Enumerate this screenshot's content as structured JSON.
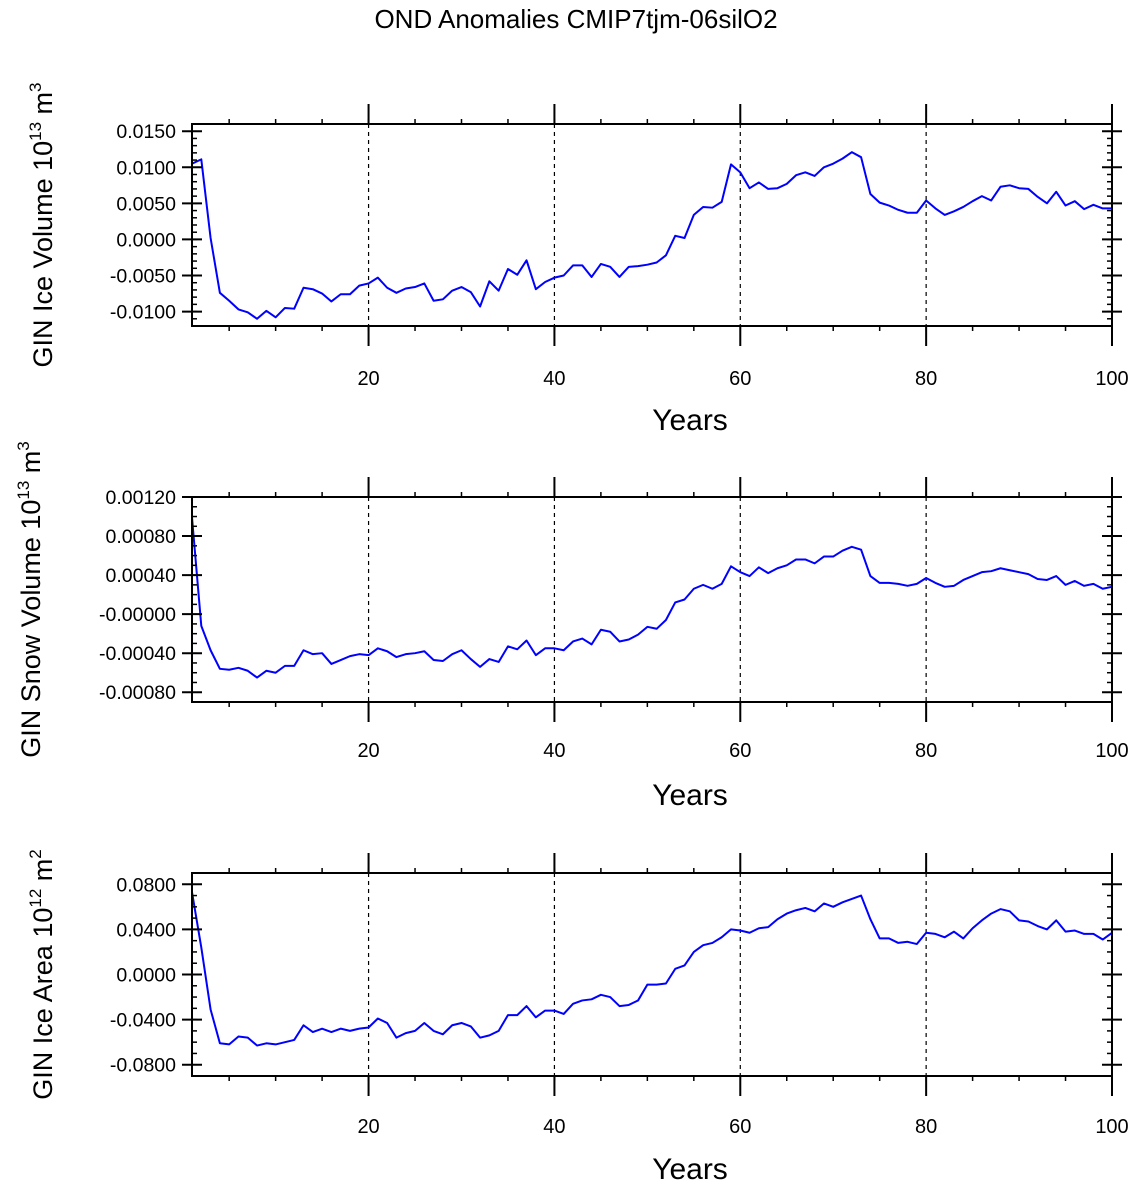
{
  "title": "OND Anomalies CMIP7tjm-06silO2",
  "colors": {
    "series": "#0000ff",
    "axis": "#000000",
    "refline": "#000000"
  },
  "chart_data": [
    {
      "type": "line",
      "ylabel": {
        "main": "GIN Ice Volume 10",
        "sup": "13",
        "unit": " m",
        "usup": "3"
      },
      "xlabel": "Years",
      "xlim": [
        1,
        100
      ],
      "ylim": [
        -0.012,
        0.016
      ],
      "x_ticks": [
        "20",
        "40",
        "60",
        "80",
        "100"
      ],
      "x_tick_values": [
        20,
        40,
        60,
        80,
        100
      ],
      "y_ticks": [
        "0.0150",
        "0.0100",
        "0.0050",
        "0.0000",
        "-0.0050",
        "-0.0100"
      ],
      "y_tick_values": [
        0.015,
        0.01,
        0.005,
        0.0,
        -0.005,
        -0.01
      ],
      "y_minor_step": 0.001,
      "x_minor_step": 5,
      "reference_lines_x": [
        20,
        40,
        60,
        80
      ],
      "reference_line_style": "dashed",
      "series": [
        {
          "x_start": 1,
          "x_step": 1,
          "values": [
            0.0105,
            0.0111,
            0.0002,
            -0.0074,
            -0.0085,
            -0.0097,
            -0.0101,
            -0.011,
            -0.0099,
            -0.0108,
            -0.0095,
            -0.0096,
            -0.0067,
            -0.0069,
            -0.0075,
            -0.0086,
            -0.0076,
            -0.0076,
            -0.0064,
            -0.0061,
            -0.0053,
            -0.0067,
            -0.0074,
            -0.0068,
            -0.0066,
            -0.0061,
            -0.0085,
            -0.0083,
            -0.0071,
            -0.0066,
            -0.0073,
            -0.0093,
            -0.0058,
            -0.0071,
            -0.0041,
            -0.0049,
            -0.0029,
            -0.0069,
            -0.0059,
            -0.0053,
            -0.005,
            -0.0036,
            -0.0036,
            -0.0052,
            -0.0034,
            -0.0038,
            -0.0052,
            -0.0038,
            -0.0037,
            -0.0035,
            -0.0032,
            -0.0022,
            0.0005,
            0.0002,
            0.0034,
            0.0045,
            0.0044,
            0.0052,
            0.0104,
            0.0093,
            0.0071,
            0.0079,
            0.007,
            0.0071,
            0.0077,
            0.0089,
            0.0093,
            0.0088,
            0.01,
            0.0105,
            0.0112,
            0.0121,
            0.0114,
            0.0063,
            0.0051,
            0.0047,
            0.0041,
            0.0037,
            0.0037,
            0.0054,
            0.0043,
            0.0034,
            0.0039,
            0.0045,
            0.0053,
            0.006,
            0.0054,
            0.0073,
            0.0075,
            0.0071,
            0.007,
            0.0059,
            0.005,
            0.0066,
            0.0047,
            0.0053,
            0.0042,
            0.0048,
            0.0043,
            0.0043
          ]
        }
      ]
    },
    {
      "type": "line",
      "ylabel": {
        "main": "GIN Snow Volume 10",
        "sup": "13",
        "unit": " m",
        "usup": "3"
      },
      "xlabel": "Years",
      "xlim": [
        1,
        100
      ],
      "ylim": [
        -0.0009,
        0.0012
      ],
      "x_ticks": [
        "20",
        "40",
        "60",
        "80",
        "100"
      ],
      "x_tick_values": [
        20,
        40,
        60,
        80,
        100
      ],
      "y_ticks": [
        "0.00120",
        "0.00080",
        "0.00040",
        "-0.00000",
        "-0.00040",
        "-0.00080"
      ],
      "y_tick_values": [
        0.0012,
        0.0008,
        0.0004,
        0.0,
        -0.0004,
        -0.0008
      ],
      "y_minor_step": 0.0001,
      "x_minor_step": 5,
      "reference_lines_x": [
        20,
        40,
        60,
        80
      ],
      "reference_line_style": "dashed",
      "series": [
        {
          "x_start": 1,
          "x_step": 1,
          "values": [
            0.00099,
            -0.00012,
            -0.00037,
            -0.00056,
            -0.00057,
            -0.00055,
            -0.00058,
            -0.00065,
            -0.00058,
            -0.0006,
            -0.00053,
            -0.00053,
            -0.00037,
            -0.00041,
            -0.0004,
            -0.00051,
            -0.00047,
            -0.00043,
            -0.00041,
            -0.00042,
            -0.00035,
            -0.00038,
            -0.00044,
            -0.00041,
            -0.0004,
            -0.00038,
            -0.00047,
            -0.00048,
            -0.00041,
            -0.00037,
            -0.00046,
            -0.00054,
            -0.00046,
            -0.00049,
            -0.00033,
            -0.00036,
            -0.00027,
            -0.00042,
            -0.00035,
            -0.00035,
            -0.00037,
            -0.00028,
            -0.00025,
            -0.00031,
            -0.00016,
            -0.00018,
            -0.00028,
            -0.00026,
            -0.00021,
            -0.00013,
            -0.00015,
            -6e-05,
            0.00012,
            0.00015,
            0.00026,
            0.0003,
            0.00026,
            0.00031,
            0.00049,
            0.00043,
            0.00039,
            0.00048,
            0.00042,
            0.00047,
            0.0005,
            0.00056,
            0.00056,
            0.00052,
            0.00059,
            0.00059,
            0.00065,
            0.00069,
            0.00066,
            0.00039,
            0.00032,
            0.00032,
            0.00031,
            0.00029,
            0.00031,
            0.00037,
            0.00032,
            0.00028,
            0.00029,
            0.00035,
            0.00039,
            0.00043,
            0.00044,
            0.00047,
            0.00045,
            0.00043,
            0.00041,
            0.00036,
            0.00035,
            0.00039,
            0.0003,
            0.00034,
            0.00029,
            0.00031,
            0.00026,
            0.00028
          ]
        }
      ]
    },
    {
      "type": "line",
      "ylabel": {
        "main": "GIN Ice Area 10",
        "sup": "12",
        "unit": " m",
        "usup": "2"
      },
      "xlabel": "Years",
      "xlim": [
        1,
        100
      ],
      "ylim": [
        -0.09,
        0.09
      ],
      "x_ticks": [
        "20",
        "40",
        "60",
        "80",
        "100"
      ],
      "x_tick_values": [
        20,
        40,
        60,
        80,
        100
      ],
      "y_ticks": [
        "0.0800",
        "0.0400",
        "0.0000",
        "-0.0400",
        "-0.0800"
      ],
      "y_tick_values": [
        0.08,
        0.04,
        0.0,
        -0.04,
        -0.08
      ],
      "y_minor_step": 0.01,
      "x_minor_step": 5,
      "reference_lines_x": [
        20,
        40,
        60,
        80
      ],
      "reference_line_style": "dashed",
      "series": [
        {
          "x_start": 1,
          "x_step": 1,
          "values": [
            0.073,
            0.024,
            -0.031,
            -0.061,
            -0.062,
            -0.055,
            -0.056,
            -0.063,
            -0.061,
            -0.062,
            -0.06,
            -0.058,
            -0.045,
            -0.051,
            -0.048,
            -0.051,
            -0.048,
            -0.05,
            -0.048,
            -0.047,
            -0.039,
            -0.043,
            -0.056,
            -0.052,
            -0.05,
            -0.043,
            -0.05,
            -0.053,
            -0.045,
            -0.043,
            -0.046,
            -0.056,
            -0.054,
            -0.05,
            -0.036,
            -0.036,
            -0.028,
            -0.038,
            -0.032,
            -0.032,
            -0.035,
            -0.026,
            -0.023,
            -0.022,
            -0.018,
            -0.02,
            -0.028,
            -0.027,
            -0.023,
            -0.009,
            -0.009,
            -0.008,
            0.005,
            0.008,
            0.02,
            0.026,
            0.028,
            0.033,
            0.04,
            0.039,
            0.037,
            0.041,
            0.042,
            0.049,
            0.054,
            0.057,
            0.059,
            0.056,
            0.063,
            0.06,
            0.064,
            0.067,
            0.07,
            0.049,
            0.032,
            0.032,
            0.028,
            0.029,
            0.027,
            0.037,
            0.036,
            0.033,
            0.038,
            0.032,
            0.041,
            0.048,
            0.054,
            0.058,
            0.056,
            0.048,
            0.047,
            0.043,
            0.04,
            0.048,
            0.038,
            0.039,
            0.036,
            0.036,
            0.031,
            0.037
          ]
        }
      ]
    }
  ]
}
